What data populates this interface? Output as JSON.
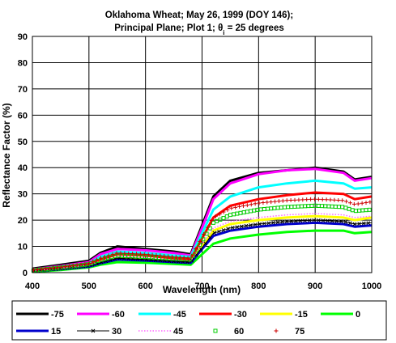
{
  "chart_data": {
    "type": "line",
    "title_line1": "Oklahoma Wheat;  May 26, 1999 (DOY 146);",
    "title_line2_prefix": "Principal Plane; Plot 1;  θ",
    "title_line2_sub": "i",
    "title_line2_suffix": " = 25 degrees",
    "xlabel": "Wavelength (nm)",
    "ylabel": "Reflectance Factor (%)",
    "xlim": [
      400,
      1000
    ],
    "ylim": [
      0,
      90
    ],
    "xticks": [
      "400",
      "500",
      "600",
      "700",
      "800",
      "900",
      "1000"
    ],
    "yticks": [
      "0",
      "10",
      "20",
      "30",
      "40",
      "50",
      "60",
      "70",
      "80",
      "90"
    ],
    "grid": true,
    "legend_position": "bottom",
    "x": [
      400,
      450,
      500,
      520,
      550,
      600,
      650,
      680,
      700,
      720,
      750,
      800,
      850,
      900,
      950,
      970,
      1000
    ],
    "series": [
      {
        "name": "-75",
        "color": "#000000",
        "style": "solid",
        "width": 3,
        "values": [
          1.5,
          3,
          4.5,
          7.5,
          10,
          9,
          8,
          7,
          18,
          29,
          35,
          38,
          39,
          40,
          38.5,
          35.5,
          36.5
        ]
      },
      {
        "name": "-60",
        "color": "#ff00ff",
        "style": "solid",
        "width": 3,
        "values": [
          1.2,
          2.5,
          4,
          7,
          9,
          8.5,
          7.5,
          6.5,
          17,
          28,
          34,
          37.5,
          39,
          39.5,
          38,
          35,
          36
        ]
      },
      {
        "name": "-45",
        "color": "#00ffff",
        "style": "solid",
        "width": 3,
        "values": [
          1,
          2.2,
          3.5,
          6,
          8,
          7.5,
          6.5,
          6,
          15,
          24,
          29,
          32.5,
          34,
          35,
          34,
          32,
          32.5
        ]
      },
      {
        "name": "-30",
        "color": "#ff0000",
        "style": "solid",
        "width": 3,
        "values": [
          0.8,
          1.9,
          3,
          5,
          7,
          6.5,
          5.5,
          5,
          13,
          21,
          25.5,
          28,
          29.5,
          30.5,
          30,
          28,
          29
        ]
      },
      {
        "name": "-15",
        "color": "#ffff00",
        "style": "solid",
        "width": 3,
        "values": [
          0.5,
          1.5,
          2.5,
          4,
          5.5,
          5,
          4.5,
          4,
          10,
          16,
          18.5,
          20,
          21,
          21.5,
          21,
          20,
          21
        ]
      },
      {
        "name": "0",
        "color": "#00ff00",
        "style": "solid",
        "width": 3,
        "values": [
          0.3,
          1,
          2,
          3,
          4,
          3.8,
          3.3,
          3,
          7,
          11,
          13,
          14.5,
          15.5,
          16,
          16,
          15,
          15.5
        ]
      },
      {
        "name": "15",
        "color": "#0000cc",
        "style": "solid",
        "width": 3,
        "values": [
          0.5,
          1.3,
          2.3,
          3.5,
          5,
          4.6,
          4,
          3.7,
          9,
          14,
          16,
          17.5,
          18.5,
          19,
          18.5,
          17.5,
          18
        ]
      },
      {
        "name": "30",
        "color": "#000000",
        "style": "cross",
        "width": 1,
        "values": [
          0.6,
          1.5,
          2.6,
          3.8,
          5.5,
          5,
          4.3,
          4,
          9.5,
          15,
          17,
          18.5,
          19.5,
          20,
          19.5,
          18.5,
          19
        ]
      },
      {
        "name": "45",
        "color": "#ff66ff",
        "style": "dotted",
        "width": 1,
        "values": [
          0.7,
          1.7,
          2.8,
          4.3,
          6,
          5.5,
          4.8,
          4.5,
          11,
          17,
          19.5,
          21,
          22,
          22.5,
          22,
          21,
          21.5
        ]
      },
      {
        "name": "60",
        "color": "#00cc00",
        "style": "square",
        "width": 1,
        "values": [
          0.8,
          1.9,
          3.2,
          4.8,
          6.5,
          6,
          5.3,
          5,
          12,
          19,
          22,
          24,
          25,
          25.5,
          25,
          23.5,
          24
        ]
      },
      {
        "name": "75",
        "color": "#cc0000",
        "style": "plus",
        "width": 1,
        "values": [
          0.9,
          2,
          3.5,
          5.5,
          7.5,
          7,
          6,
          5.5,
          13.5,
          21,
          24.5,
          26.5,
          27.5,
          28,
          27.5,
          26,
          27
        ]
      }
    ]
  }
}
